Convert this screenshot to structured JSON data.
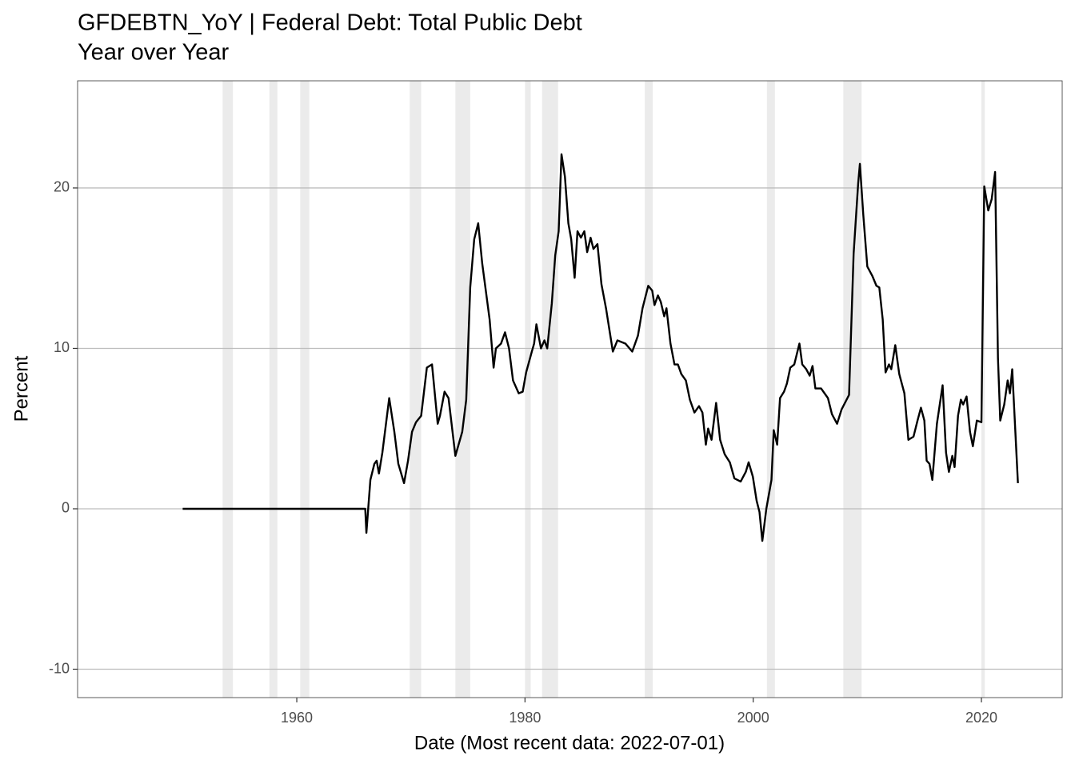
{
  "chart_data": {
    "type": "line",
    "title": "GFDEBTN_YoY | Federal Debt: Total Public Debt",
    "subtitle": "Year over Year",
    "x_label": "Date (Most recent data: 2022-07-01)",
    "y_label": "Percent",
    "xlim": [
      1940.79,
      2027.08
    ],
    "ylim": [
      -11.77,
      26.68
    ],
    "xticks": [
      1960,
      1980,
      2000,
      2020
    ],
    "yticks": [
      -10,
      0,
      10,
      20
    ],
    "grid": true,
    "color": "#000000",
    "recession_color": "#ebebeb",
    "recessions": [
      [
        1953.5,
        1954.4
      ],
      [
        1957.6,
        1958.3
      ],
      [
        1960.3,
        1961.1
      ],
      [
        1969.9,
        1970.9
      ],
      [
        1973.9,
        1975.2
      ],
      [
        1980.0,
        1980.5
      ],
      [
        1981.5,
        1982.9
      ],
      [
        1990.5,
        1991.2
      ],
      [
        2001.2,
        2001.9
      ],
      [
        2007.9,
        2009.5
      ],
      [
        2020.0,
        2020.3
      ]
    ],
    "x": [
      1950.0,
      1966.0,
      1966.1,
      1966.45,
      1966.8,
      1967.0,
      1967.2,
      1967.5,
      1968.1,
      1968.55,
      1968.9,
      1969.4,
      1969.75,
      1970.1,
      1970.45,
      1970.9,
      1971.4,
      1971.85,
      1972.35,
      1972.55,
      1972.95,
      1973.3,
      1973.9,
      1974.5,
      1974.85,
      1975.2,
      1975.55,
      1975.9,
      1976.25,
      1976.9,
      1977.25,
      1977.45,
      1977.9,
      1978.25,
      1978.6,
      1978.95,
      1979.45,
      1979.8,
      1980.1,
      1980.6,
      1980.8,
      1981.0,
      1981.4,
      1981.7,
      1981.95,
      1982.35,
      1982.65,
      1982.95,
      1983.2,
      1983.5,
      1983.8,
      1984.05,
      1984.35,
      1984.6,
      1984.9,
      1985.2,
      1985.45,
      1985.75,
      1986.0,
      1986.35,
      1986.7,
      1987.1,
      1987.7,
      1988.1,
      1988.45,
      1988.8,
      1989.4,
      1989.9,
      1990.3,
      1990.8,
      1991.15,
      1991.35,
      1991.65,
      1991.9,
      1992.2,
      1992.4,
      1992.75,
      1993.1,
      1993.4,
      1993.7,
      1994.1,
      1994.45,
      1994.85,
      1995.25,
      1995.55,
      1995.85,
      1996.05,
      1996.35,
      1996.75,
      1997.1,
      1997.5,
      1997.95,
      1998.35,
      1998.9,
      1999.35,
      1999.6,
      1999.97,
      2000.3,
      2000.55,
      2000.8,
      2001.15,
      2001.6,
      2001.8,
      2002.1,
      2002.35,
      2002.7,
      2002.95,
      2003.25,
      2003.6,
      2004.05,
      2004.3,
      2004.65,
      2004.95,
      2005.2,
      2005.45,
      2005.95,
      2006.55,
      2006.9,
      2007.35,
      2007.75,
      2008.4,
      2008.8,
      2009.2,
      2009.35,
      2009.65,
      2010.0,
      2010.45,
      2010.8,
      2011.05,
      2011.35,
      2011.6,
      2011.9,
      2012.1,
      2012.45,
      2012.8,
      2013.25,
      2013.6,
      2014.05,
      2014.4,
      2014.7,
      2015.0,
      2015.2,
      2015.45,
      2015.7,
      2016.1,
      2016.6,
      2016.9,
      2017.15,
      2017.45,
      2017.65,
      2017.95,
      2018.2,
      2018.4,
      2018.7,
      2019.0,
      2019.25,
      2019.6,
      2020.0,
      2020.25,
      2020.6,
      2020.9,
      2021.2,
      2021.45,
      2021.65,
      2022.0,
      2022.3,
      2022.5,
      2022.7,
      2023.2
    ],
    "values": [
      0,
      0,
      -1.5,
      1.8,
      2.8,
      3.0,
      2.2,
      3.5,
      6.9,
      4.8,
      2.8,
      1.6,
      3.0,
      4.8,
      5.4,
      5.8,
      8.8,
      9.0,
      5.3,
      5.8,
      7.3,
      6.9,
      3.3,
      4.8,
      6.8,
      13.8,
      16.8,
      17.8,
      15.3,
      11.8,
      8.8,
      10.0,
      10.3,
      11.0,
      10.0,
      8.0,
      7.2,
      7.3,
      8.5,
      9.8,
      10.3,
      11.5,
      10.0,
      10.5,
      10.0,
      12.8,
      15.8,
      17.3,
      22.1,
      20.7,
      17.8,
      16.8,
      14.4,
      17.3,
      16.9,
      17.3,
      16.0,
      16.9,
      16.2,
      16.5,
      14.0,
      12.5,
      9.8,
      10.5,
      10.4,
      10.3,
      9.8,
      10.8,
      12.5,
      13.9,
      13.6,
      12.7,
      13.3,
      12.9,
      12.0,
      12.5,
      10.3,
      9.0,
      9.0,
      8.4,
      8.0,
      6.8,
      6.0,
      6.4,
      6.0,
      4.0,
      5.0,
      4.3,
      6.6,
      4.3,
      3.4,
      2.9,
      1.9,
      1.7,
      2.3,
      2.9,
      2.0,
      0.5,
      -0.2,
      -2.0,
      0.0,
      1.8,
      4.9,
      4.0,
      6.9,
      7.3,
      7.8,
      8.8,
      9.0,
      10.3,
      9.0,
      8.7,
      8.3,
      8.9,
      7.5,
      7.5,
      6.9,
      5.9,
      5.3,
      6.2,
      7.1,
      15.9,
      20.3,
      21.5,
      18.3,
      15.1,
      14.5,
      13.9,
      13.8,
      11.8,
      8.5,
      9.0,
      8.7,
      10.2,
      8.4,
      7.2,
      4.3,
      4.5,
      5.5,
      6.3,
      5.5,
      3.0,
      2.8,
      1.8,
      5.3,
      7.7,
      3.5,
      2.3,
      3.3,
      2.6,
      5.8,
      6.8,
      6.5,
      7.0,
      4.8,
      3.9,
      5.5,
      5.4,
      20.1,
      18.6,
      19.3,
      21.0,
      9.4,
      5.5,
      6.5,
      8.0,
      7.2,
      8.7,
      1.6
    ]
  }
}
